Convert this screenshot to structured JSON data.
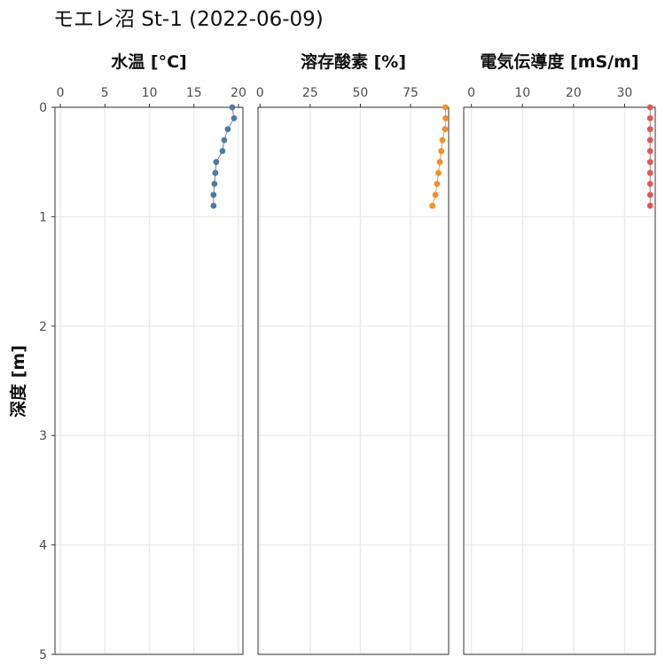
{
  "chart_data": {
    "type": "scatter",
    "title": "モエレ沼 St-1 (2022-06-09)",
    "ylabel": "深度 [m]",
    "ylim": [
      0,
      5
    ],
    "y_reversed": true,
    "y_ticks": [
      "0",
      "1",
      "2",
      "3",
      "4",
      "5"
    ],
    "y_tick_values": [
      0,
      1,
      2,
      3,
      4,
      5
    ],
    "depth": [
      0.0,
      0.1,
      0.2,
      0.3,
      0.4,
      0.5,
      0.6,
      0.7,
      0.8,
      0.9
    ],
    "panels": [
      {
        "title": "水温 [°C]",
        "color": "#4e79a7",
        "xlim": [
          -0.6,
          20.5
        ],
        "x_ticks": [
          "0",
          "5",
          "10",
          "15",
          "20"
        ],
        "x_tick_values": [
          0,
          5,
          10,
          15,
          20
        ],
        "values": [
          19.3,
          19.5,
          18.8,
          18.4,
          18.2,
          17.5,
          17.4,
          17.3,
          17.2,
          17.2
        ]
      },
      {
        "title": "溶存酸素 [%]",
        "color": "#f28e2b",
        "xlim": [
          -1,
          94
        ],
        "x_ticks": [
          "0",
          "25",
          "50",
          "75"
        ],
        "x_tick_values": [
          0,
          25,
          50,
          75
        ],
        "values": [
          92.4,
          92.5,
          92.2,
          90.9,
          90.3,
          89.6,
          88.9,
          88.2,
          87.4,
          85.9
        ]
      },
      {
        "title": "電気伝導度 [mS/m]",
        "color": "#e15759",
        "xlim": [
          -1.5,
          36
        ],
        "x_ticks": [
          "0",
          "10",
          "20",
          "30"
        ],
        "x_tick_values": [
          0,
          10,
          20,
          30
        ],
        "values": [
          35.0,
          35.0,
          35.0,
          35.0,
          35.0,
          35.0,
          35.0,
          35.0,
          35.0,
          35.0
        ]
      }
    ]
  }
}
